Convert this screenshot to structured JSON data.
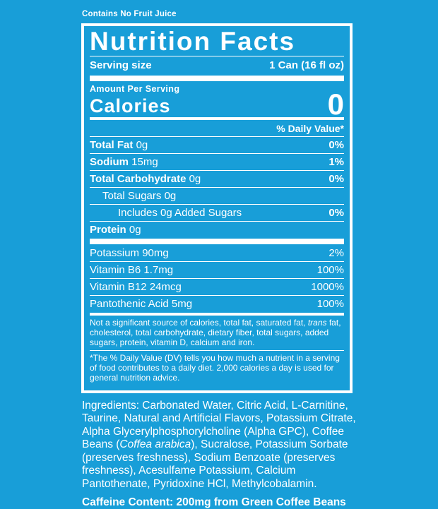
{
  "page": {
    "background_color": "#189ED8",
    "text_color": "#FFFFFF"
  },
  "top_note": "Contains No Fruit Juice",
  "label": {
    "title": "Nutrition Facts",
    "serving_size_label": "Serving size",
    "serving_size_value": "1 Can (16 fl oz)",
    "amount_per_serving": "Amount Per Serving",
    "calories_label": "Calories",
    "calories_value": "0",
    "daily_value_header": "% Daily Value*",
    "nutrients": [
      {
        "name": "Total Fat",
        "amount": "0g",
        "dv": "0%"
      },
      {
        "name": "Sodium",
        "amount": "15mg",
        "dv": "1%"
      },
      {
        "name": "Total Carbohydrate",
        "amount": "0g",
        "dv": "0%"
      },
      {
        "name": "Total Sugars",
        "amount": "0g",
        "dv": ""
      },
      {
        "name": "Includes 0g Added Sugars",
        "amount": "",
        "dv": "0%"
      },
      {
        "name": "Protein",
        "amount": "0g",
        "dv": ""
      }
    ],
    "vitamins": [
      {
        "name": "Potassium 90mg",
        "dv": "2%"
      },
      {
        "name": "Vitamin B6 1.7mg",
        "dv": "100%"
      },
      {
        "name": "Vitamin B12 24mcg",
        "dv": "1000%"
      },
      {
        "name": "Pantothenic Acid 5mg",
        "dv": "100%"
      }
    ],
    "footnote_source": {
      "pre": "Not a significant source of calories, total fat, saturated fat, ",
      "italic": "trans",
      "post": " fat, cholesterol, total carbohydrate, dietary fiber, total sugars, added sugars, protein, vitamin D, calcium and iron."
    },
    "footnote_dv": "*The % Daily Value (DV) tells you how much a nutrient in a serving of food contributes to a daily diet. 2,000 calories a day is used for general nutrition advice."
  },
  "ingredients": {
    "pre": "Ingredients: Carbonated Water, Citric Acid, L-Carnitine, Taurine, Natural and Artificial Flavors, Potassium Citrate, Alpha Glycerylphosphorylcholine (Alpha GPC), Coffee Beans (",
    "italic": "Coffea arabica",
    "post": "), Sucralose, Potassium Sorbate (preserves freshness), Sodium Benzoate (preserves freshness), Acesulfame Potassium, Calcium Pantothenate, Pyridoxine HCl, Methylcobalamin."
  },
  "caffeine_content": "Caffeine Content: 200mg from Green Coffee Beans"
}
